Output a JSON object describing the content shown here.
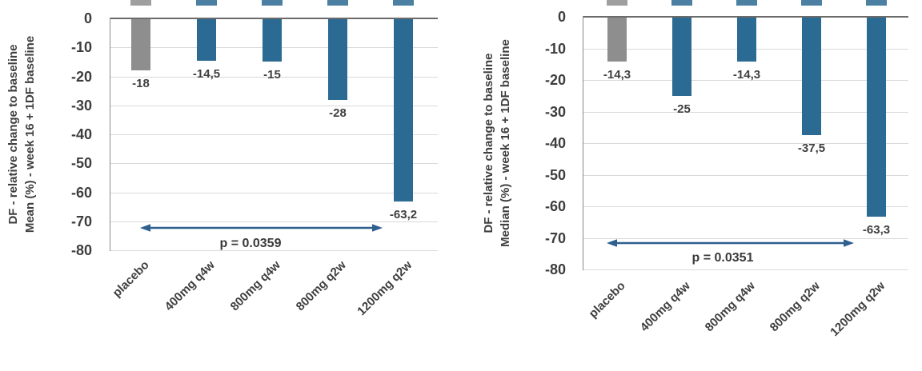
{
  "figure": {
    "background": "#ffffff"
  },
  "colors": {
    "bar_blue": "#2b6a93",
    "bar_gray": "#8e8e8e",
    "arrow_blue": "#2e5f8f",
    "gridline": "#d9d9d9",
    "axis_line": "#6b6b6b",
    "text": "#3f3f3f"
  },
  "chart_data": [
    {
      "type": "bar",
      "title": "",
      "ylabel_line1": "DF - relative change to baseline",
      "ylabel_line2": "Mean (%) - week 16 + 1DF baseline",
      "categories": [
        "placebo",
        "400mg q4w",
        "800mg q4w",
        "800mg q2w",
        "1200mg q2w"
      ],
      "values": [
        -18,
        -14.5,
        -15,
        -28,
        -63.2
      ],
      "value_labels": [
        "-18",
        "-14,5",
        "-15",
        "-28",
        "-63,2"
      ],
      "bar_colors": [
        "#8e8e8e",
        "#2b6a93",
        "#2b6a93",
        "#2b6a93",
        "#2b6a93"
      ],
      "ylim": [
        -80,
        0
      ],
      "ytick_labels": [
        "0",
        "-10",
        "-20",
        "-30",
        "-40",
        "-50",
        "-60",
        "-70",
        "-80"
      ],
      "grid": true,
      "legend": "none",
      "annotation": {
        "text": "p = 0.0359",
        "type": "double-headed-arrow",
        "from_category": "placebo",
        "to_category": "1200mg q2w"
      }
    },
    {
      "type": "bar",
      "title": "",
      "ylabel_line1": "DF - relative change to baseline",
      "ylabel_line2": "Median (%) - week 16 + 1DF baseline",
      "categories": [
        "placebo",
        "400mg q4w",
        "800mg q4w",
        "800mg q2w",
        "1200mg q2w"
      ],
      "values": [
        -14.3,
        -25,
        -14.3,
        -37.5,
        -63.3
      ],
      "value_labels": [
        "-14,3",
        "-25",
        "-14,3",
        "-37,5",
        "-63,3"
      ],
      "bar_colors": [
        "#8e8e8e",
        "#2b6a93",
        "#2b6a93",
        "#2b6a93",
        "#2b6a93"
      ],
      "ylim": [
        -80,
        0
      ],
      "ytick_labels": [
        "0",
        "-10",
        "-20",
        "-30",
        "-40",
        "-50",
        "-60",
        "-70",
        "-80"
      ],
      "grid": true,
      "legend": "none",
      "annotation": {
        "text": "p = 0.0351",
        "type": "double-headed-arrow",
        "from_category": "placebo",
        "to_category": "1200mg q2w"
      }
    }
  ]
}
